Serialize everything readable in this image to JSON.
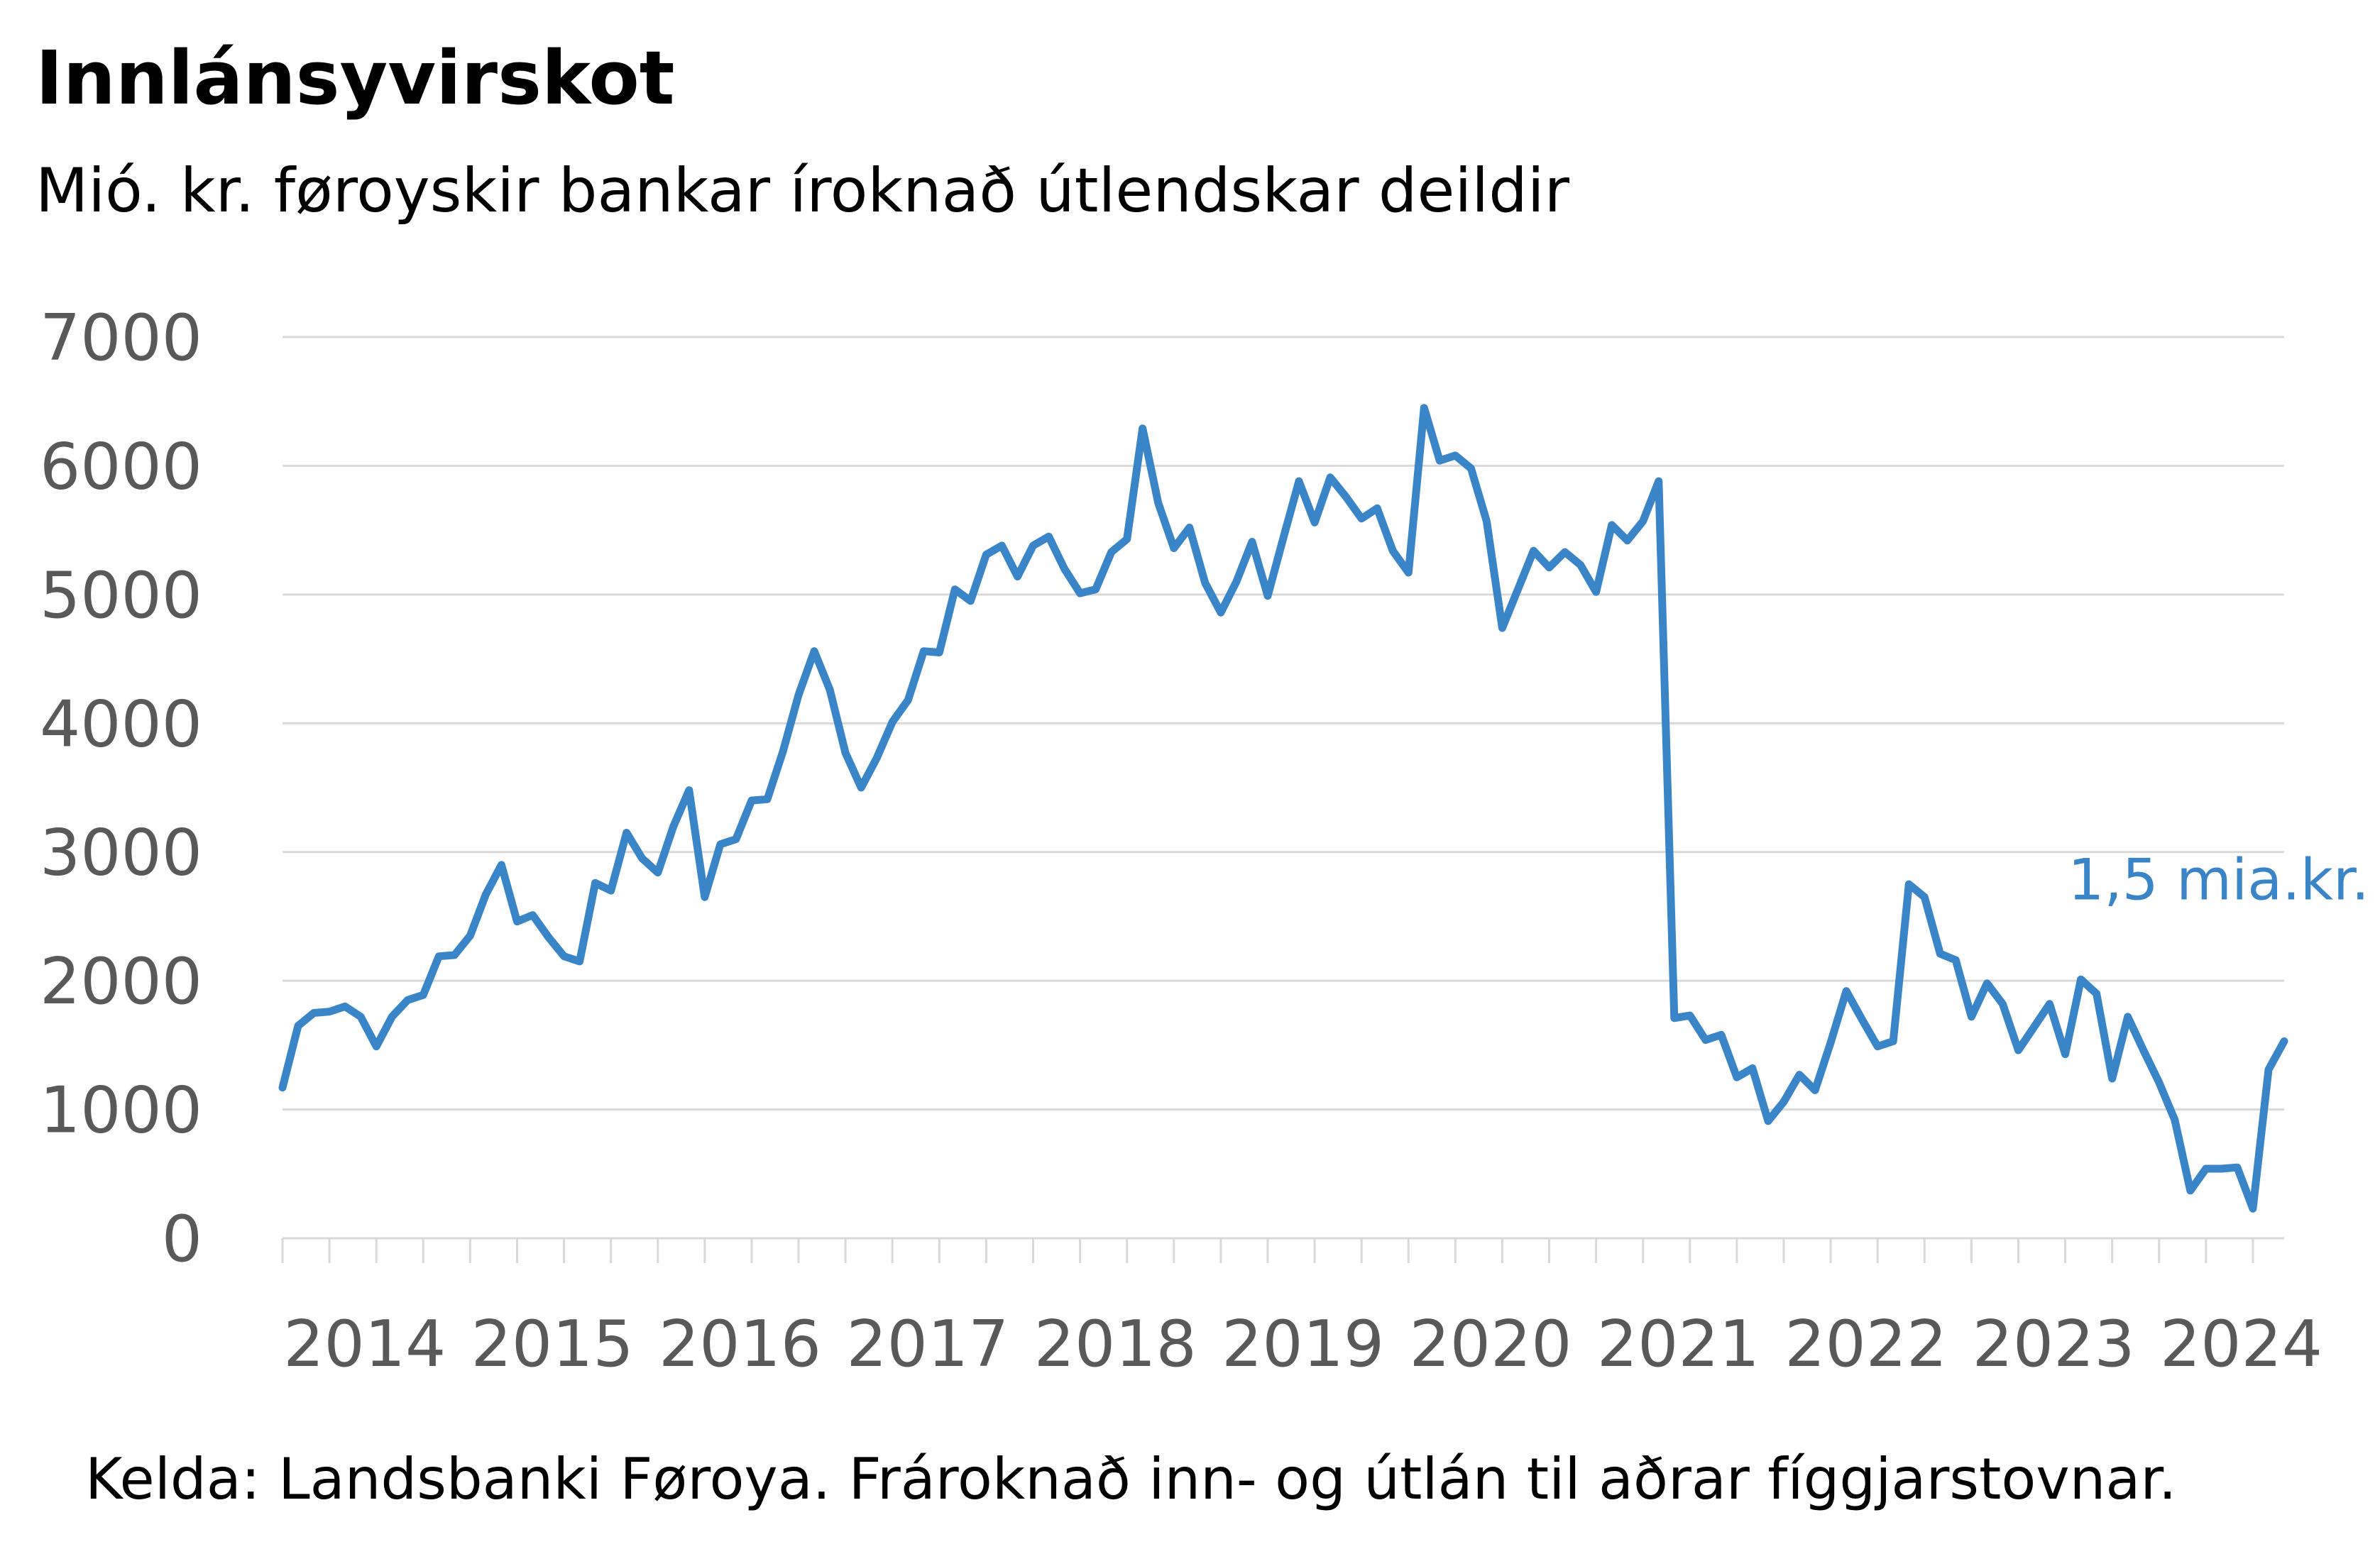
{
  "title": "Innlánsyvirskot",
  "subtitle": "Mió. kr. føroyskir bankar íroknað útlendskar deildir",
  "source": "Kelda: Landsbanki Føroya. Frároknað inn- og útlán til aðrar fíggjarstovnar.",
  "chart_data": {
    "type": "line",
    "title": "Innlánsyvirskot",
    "subtitle": "Mió. kr. føroyskir bankar íroknað útlendskar deildir",
    "xlabel": "",
    "ylabel": "",
    "ylim": [
      0,
      7000
    ],
    "yticks": [
      0,
      1000,
      2000,
      3000,
      4000,
      5000,
      6000,
      7000
    ],
    "ytick_labels": [
      "0",
      "1000",
      "2000",
      "3000",
      "4000",
      "5000",
      "6000",
      "7000"
    ],
    "x_start": "2014-01",
    "x_frequency": "monthly",
    "xtick_labels": [
      "2014",
      "2015",
      "2016",
      "2017",
      "2018",
      "2019",
      "2020",
      "2021",
      "2022",
      "2023",
      "2024"
    ],
    "grid": "horizontal",
    "legend": "none",
    "series_color": "#3A84C8",
    "annotation": {
      "text": "1,5 mia.kr.",
      "at_index": 128
    },
    "series": [
      {
        "values": [
          1170,
          1650,
          1750,
          1760,
          1800,
          1720,
          1490,
          1720,
          1850,
          1890,
          2190,
          2200,
          2350,
          2670,
          2900,
          2460,
          2510,
          2340,
          2190,
          2150,
          2760,
          2700,
          3150,
          2950,
          2840,
          3200,
          3480,
          2650,
          3060,
          3100,
          3400,
          3410,
          3780,
          4220,
          4560,
          4260,
          3770,
          3500,
          3730,
          4010,
          4180,
          4560,
          4550,
          5040,
          4950,
          5310,
          5380,
          5140,
          5380,
          5450,
          5200,
          5010,
          5040,
          5330,
          5430,
          6290,
          5710,
          5360,
          5520,
          5090,
          4860,
          5100,
          5410,
          4990,
          5440,
          5880,
          5560,
          5910,
          5760,
          5590,
          5670,
          5340,
          5170,
          6450,
          6040,
          6080,
          5980,
          5570,
          4740,
          5040,
          5340,
          5210,
          5330,
          5230,
          5020,
          5540,
          5420,
          5570,
          5880,
          1710,
          1730,
          1540,
          1580,
          1250,
          1320,
          910,
          1060,
          1270,
          1150,
          1520,
          1920,
          1700,
          1490,
          1530,
          2750,
          2650,
          2210,
          2160,
          1720,
          1980,
          1820,
          1460,
          1640,
          1820,
          1430,
          2010,
          1900,
          1240,
          1720,
          1460,
          1210,
          920,
          370,
          540,
          540,
          550,
          230,
          1310,
          1530
        ]
      }
    ]
  }
}
